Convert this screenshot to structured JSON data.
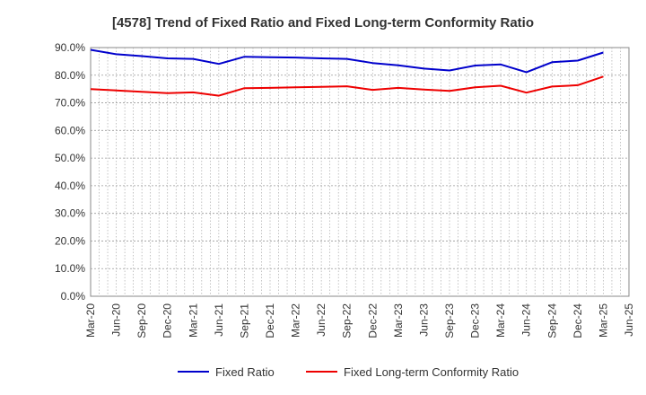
{
  "chart_data": {
    "type": "line",
    "title": "[4578]  Trend of Fixed Ratio and Fixed Long-term Conformity Ratio",
    "xlabel": "",
    "ylabel": "",
    "ylim": [
      0,
      90
    ],
    "y_ticks": [
      "0.0%",
      "10.0%",
      "20.0%",
      "30.0%",
      "40.0%",
      "50.0%",
      "60.0%",
      "70.0%",
      "80.0%",
      "90.0%"
    ],
    "x_tick_labels": [
      "Mar-20",
      "Jun-20",
      "Sep-20",
      "Dec-20",
      "Mar-21",
      "Jun-21",
      "Sep-21",
      "Dec-21",
      "Mar-22",
      "Jun-22",
      "Sep-22",
      "Dec-22",
      "Mar-23",
      "Jun-23",
      "Sep-23",
      "Dec-23",
      "Mar-24",
      "Jun-24",
      "Sep-24",
      "Dec-24",
      "Mar-25",
      "Jun-25"
    ],
    "categories": [
      "Mar-20",
      "Jun-20",
      "Sep-20",
      "Dec-20",
      "Mar-21",
      "Jun-21",
      "Sep-21",
      "Dec-21",
      "Mar-22",
      "Jun-22",
      "Sep-22",
      "Dec-22",
      "Mar-23",
      "Jun-23",
      "Sep-23",
      "Dec-23",
      "Mar-24",
      "Jun-24",
      "Sep-24",
      "Dec-24",
      "Mar-25"
    ],
    "series": [
      {
        "name": "Fixed Ratio",
        "color": "#0000cc",
        "values": [
          89.2,
          87.6,
          86.9,
          86.1,
          85.9,
          84.1,
          86.7,
          86.5,
          86.4,
          86.1,
          85.9,
          84.4,
          83.6,
          82.4,
          81.7,
          83.5,
          83.9,
          81.1,
          84.7,
          85.3,
          88.2
        ]
      },
      {
        "name": "Fixed Long-term Conformity Ratio",
        "color": "#ee0000",
        "values": [
          75.0,
          74.5,
          74.0,
          73.5,
          73.8,
          72.6,
          75.3,
          75.4,
          75.6,
          75.8,
          76.0,
          74.7,
          75.4,
          74.8,
          74.3,
          75.6,
          76.2,
          73.7,
          75.9,
          76.4,
          79.5
        ]
      }
    ],
    "grid": true,
    "legend_position": "bottom"
  }
}
